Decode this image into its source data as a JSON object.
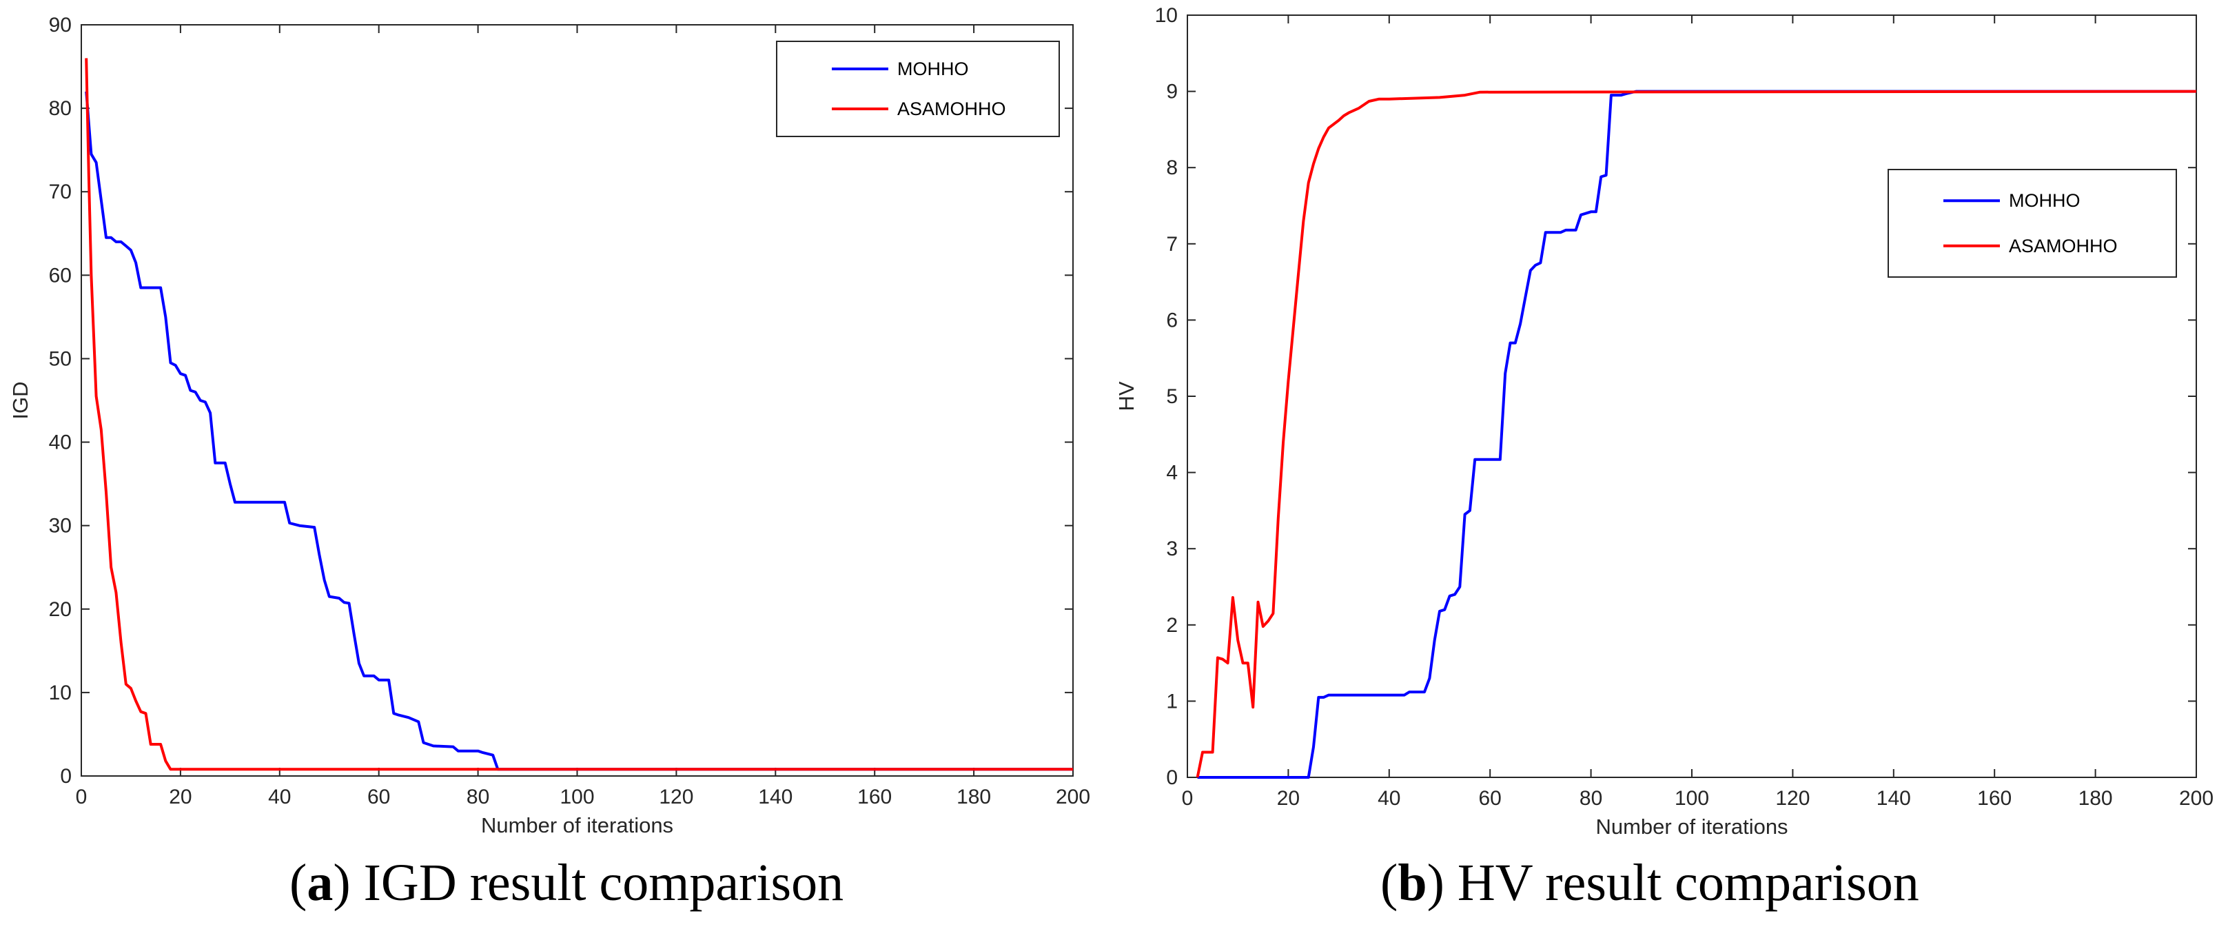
{
  "captions": [
    {
      "prefix": "(",
      "letter": "a",
      "suffix": ")",
      "text": " IGD result comparison"
    },
    {
      "prefix": "(",
      "letter": "b",
      "suffix": ")",
      "text": " HV result comparison"
    }
  ],
  "chart_data": [
    {
      "type": "line",
      "xlabel": "Number of iterations",
      "ylabel": "IGD",
      "xlim": [
        0,
        200
      ],
      "ylim": [
        0,
        90
      ],
      "xticks": [
        0,
        20,
        40,
        60,
        80,
        100,
        120,
        140,
        160,
        180,
        200
      ],
      "yticks": [
        0,
        10,
        20,
        30,
        40,
        50,
        60,
        70,
        80,
        90
      ],
      "legend_position": "top-right",
      "series": [
        {
          "name": "MOHHO",
          "color": "#0000ff",
          "points": [
            [
              1,
              82
            ],
            [
              2,
              74.5
            ],
            [
              3,
              73.5
            ],
            [
              4,
              69
            ],
            [
              5,
              64.5
            ],
            [
              6,
              64.5
            ],
            [
              7,
              64
            ],
            [
              8,
              64
            ],
            [
              9,
              63.5
            ],
            [
              10,
              63
            ],
            [
              11,
              61.5
            ],
            [
              12,
              58.5
            ],
            [
              16,
              58.5
            ],
            [
              17,
              55
            ],
            [
              18,
              49.5
            ],
            [
              19,
              49.2
            ],
            [
              20,
              48.2
            ],
            [
              21,
              48
            ],
            [
              22,
              46.2
            ],
            [
              23,
              46
            ],
            [
              24,
              45
            ],
            [
              25,
              44.8
            ],
            [
              26,
              43.5
            ],
            [
              27,
              37.5
            ],
            [
              29,
              37.5
            ],
            [
              30,
              35
            ],
            [
              31,
              32.8
            ],
            [
              41,
              32.8
            ],
            [
              42,
              30.3
            ],
            [
              44,
              30
            ],
            [
              47,
              29.8
            ],
            [
              48,
              26.5
            ],
            [
              49,
              23.5
            ],
            [
              50,
              21.5
            ],
            [
              52,
              21.3
            ],
            [
              53,
              20.8
            ],
            [
              54,
              20.7
            ],
            [
              55,
              17
            ],
            [
              56,
              13.5
            ],
            [
              57,
              12
            ],
            [
              59,
              12
            ],
            [
              60,
              11.5
            ],
            [
              62,
              11.5
            ],
            [
              63,
              7.5
            ],
            [
              64,
              7.3
            ],
            [
              66,
              7
            ],
            [
              68,
              6.5
            ],
            [
              69,
              4
            ],
            [
              70,
              3.8
            ],
            [
              71,
              3.6
            ],
            [
              75,
              3.5
            ],
            [
              76,
              3
            ],
            [
              80,
              3
            ],
            [
              81,
              2.8
            ],
            [
              83,
              2.5
            ],
            [
              84,
              0.8
            ],
            [
              200,
              0.8
            ]
          ]
        },
        {
          "name": "ASAMOHHO",
          "color": "#ff0000",
          "points": [
            [
              1,
              86
            ],
            [
              1.5,
              72
            ],
            [
              2,
              60
            ],
            [
              3,
              45.5
            ],
            [
              4,
              41.5
            ],
            [
              5,
              34
            ],
            [
              6,
              25
            ],
            [
              7,
              22
            ],
            [
              8,
              16
            ],
            [
              9,
              11
            ],
            [
              10,
              10.5
            ],
            [
              11,
              9
            ],
            [
              12,
              7.7
            ],
            [
              13,
              7.5
            ],
            [
              14,
              3.8
            ],
            [
              16,
              3.8
            ],
            [
              17,
              1.8
            ],
            [
              18,
              0.8
            ],
            [
              200,
              0.8
            ]
          ]
        }
      ]
    },
    {
      "type": "line",
      "xlabel": "Number of iterations",
      "ylabel": "HV",
      "xlim": [
        0,
        200
      ],
      "ylim": [
        0,
        10
      ],
      "xticks": [
        0,
        20,
        40,
        60,
        80,
        100,
        120,
        140,
        160,
        180,
        200
      ],
      "yticks": [
        0,
        1,
        2,
        3,
        4,
        5,
        6,
        7,
        8,
        9,
        10
      ],
      "legend_position": "right",
      "series": [
        {
          "name": "MOHHO",
          "color": "#0000ff",
          "points": [
            [
              2,
              0
            ],
            [
              24,
              0
            ],
            [
              25,
              0.4
            ],
            [
              26,
              1.05
            ],
            [
              27,
              1.05
            ],
            [
              28,
              1.08
            ],
            [
              43,
              1.08
            ],
            [
              44,
              1.12
            ],
            [
              47,
              1.12
            ],
            [
              48,
              1.3
            ],
            [
              49,
              1.8
            ],
            [
              50,
              2.18
            ],
            [
              51,
              2.2
            ],
            [
              52,
              2.38
            ],
            [
              53,
              2.4
            ],
            [
              54,
              2.5
            ],
            [
              55,
              3.45
            ],
            [
              56,
              3.5
            ],
            [
              57,
              4.17
            ],
            [
              62,
              4.17
            ],
            [
              63,
              5.3
            ],
            [
              64,
              5.7
            ],
            [
              65,
              5.7
            ],
            [
              66,
              5.95
            ],
            [
              67,
              6.3
            ],
            [
              68,
              6.65
            ],
            [
              69,
              6.72
            ],
            [
              70,
              6.75
            ],
            [
              71,
              7.15
            ],
            [
              74,
              7.15
            ],
            [
              75,
              7.18
            ],
            [
              77,
              7.18
            ],
            [
              78,
              7.38
            ],
            [
              79,
              7.4
            ],
            [
              80,
              7.42
            ],
            [
              81,
              7.42
            ],
            [
              82,
              7.88
            ],
            [
              83,
              7.9
            ],
            [
              84,
              8.95
            ],
            [
              86,
              8.95
            ],
            [
              87,
              8.97
            ],
            [
              89,
              9
            ],
            [
              200,
              9
            ]
          ]
        },
        {
          "name": "ASAMOHHO",
          "color": "#ff0000",
          "points": [
            [
              2,
              0
            ],
            [
              3,
              0.33
            ],
            [
              4,
              0.33
            ],
            [
              5,
              0.33
            ],
            [
              6,
              1.57
            ],
            [
              7,
              1.55
            ],
            [
              8,
              1.5
            ],
            [
              9,
              2.36
            ],
            [
              10,
              1.8
            ],
            [
              11,
              1.5
            ],
            [
              12,
              1.5
            ],
            [
              13,
              0.92
            ],
            [
              14,
              2.3
            ],
            [
              15,
              1.98
            ],
            [
              16,
              2.05
            ],
            [
              17,
              2.15
            ],
            [
              18,
              3.4
            ],
            [
              19,
              4.4
            ],
            [
              20,
              5.2
            ],
            [
              21,
              5.9
            ],
            [
              22,
              6.6
            ],
            [
              23,
              7.3
            ],
            [
              24,
              7.8
            ],
            [
              25,
              8.05
            ],
            [
              26,
              8.25
            ],
            [
              27,
              8.4
            ],
            [
              28,
              8.52
            ],
            [
              30,
              8.62
            ],
            [
              31,
              8.68
            ],
            [
              32,
              8.72
            ],
            [
              34,
              8.78
            ],
            [
              36,
              8.87
            ],
            [
              38,
              8.9
            ],
            [
              40,
              8.9
            ],
            [
              50,
              8.92
            ],
            [
              55,
              8.95
            ],
            [
              58,
              8.99
            ],
            [
              200,
              9
            ]
          ]
        }
      ]
    }
  ]
}
